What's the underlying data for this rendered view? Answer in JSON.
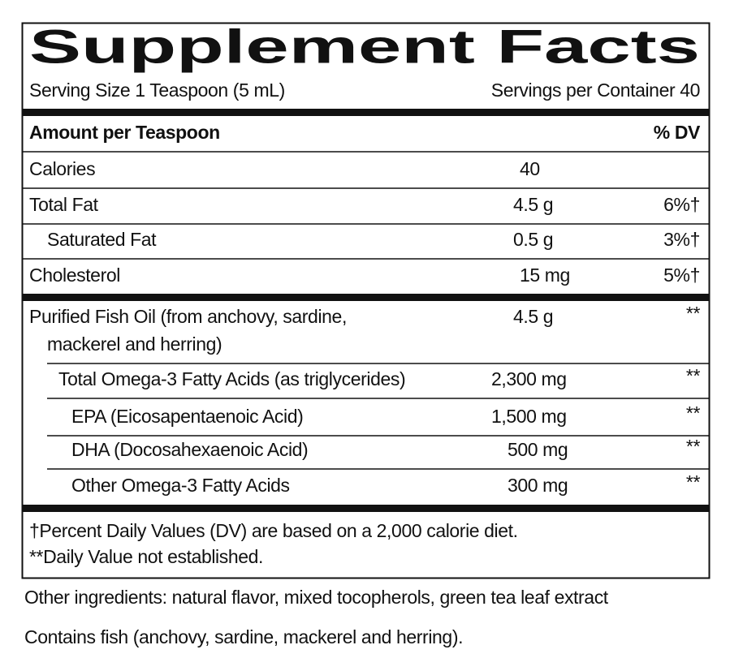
{
  "title": "Supplement Facts",
  "serving_size": "Serving Size 1 Teaspoon (5 mL)",
  "servings_per_container": "Servings per Container 40",
  "header": {
    "amount": "Amount per Teaspoon",
    "dv": "% DV"
  },
  "rows": [
    {
      "name": "Calories",
      "amount": "40"
    },
    {
      "name": "Total Fat",
      "amount": "4.5 g",
      "dv": "6%†"
    },
    {
      "name": "Saturated Fat",
      "amount": "0.5 g",
      "dv": "3%†"
    },
    {
      "name": "Cholesterol",
      "amount": "15 mg",
      "dv": "5%†"
    },
    {
      "name": [
        "Purified Fish Oil (from anchovy, sardine,",
        "mackerel and herring)"
      ],
      "amount": "4.5 g",
      "dv": "**"
    },
    {
      "name": "Total Omega-3 Fatty Acids (as triglycerides)",
      "amount": "2,300 mg",
      "dv": "**"
    },
    {
      "name": "EPA (Eicosapentaenoic Acid)",
      "amount": "1,500 mg",
      "dv": "**"
    },
    {
      "name": "DHA (Docosahexaenoic Acid)",
      "amount": "500 mg",
      "dv": "**"
    },
    {
      "name": "Other Omega-3 Fatty Acids",
      "amount": "300 mg",
      "dv": "**"
    }
  ],
  "footnotes": [
    "†Percent Daily Values (DV) are based on a 2,000 calorie diet.",
    "**Daily Value not established."
  ],
  "other_ingredients": "Other ingredients: natural flavor, mixed tocopherols, green tea leaf extract",
  "contains": "Contains fish (anchovy, sardine, mackerel and herring)."
}
